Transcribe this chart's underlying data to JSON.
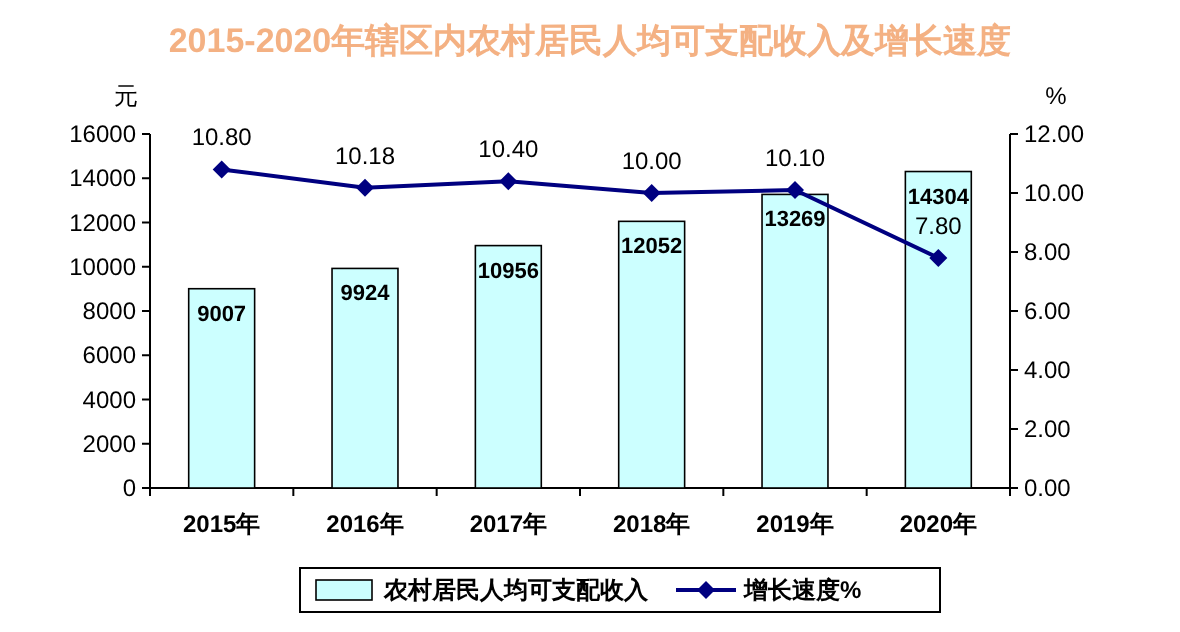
{
  "chart_data": {
    "type": "bar",
    "title": "2015-2020年辖区内农村居民人均可支配收入及增长速度",
    "ylabel": "元",
    "y2label": "%",
    "categories": [
      "2015年",
      "2016年",
      "2017年",
      "2018年",
      "2019年",
      "2020年"
    ],
    "series": [
      {
        "name": "农村居民人均可支配收入",
        "color": "#ccffff",
        "values": [
          9007,
          9924,
          10956,
          12052,
          13269,
          14304
        ],
        "value_labels": [
          "9007",
          "9924",
          "10956",
          "12052",
          "13269",
          "14304"
        ]
      },
      {
        "name": "增长速度%",
        "type": "line",
        "axis": "y2",
        "color": "#000080",
        "marker": "diamond",
        "values": [
          10.8,
          10.18,
          10.4,
          10.0,
          10.1,
          7.8
        ],
        "value_labels": [
          "10.80",
          "10.18",
          "10.40",
          "10.00",
          "10.10",
          "7.80"
        ]
      }
    ],
    "ylim": [
      0,
      16000
    ],
    "yticks": [
      0,
      2000,
      4000,
      6000,
      8000,
      10000,
      12000,
      14000,
      16000
    ],
    "y2lim": [
      0,
      12
    ],
    "y2ticks": [
      {
        "value": 0,
        "label": "0.00"
      },
      {
        "value": 2,
        "label": "2.00"
      },
      {
        "value": 4,
        "label": "4.00"
      },
      {
        "value": 6,
        "label": "6.00"
      },
      {
        "value": 8,
        "label": "8.00"
      },
      {
        "value": 10,
        "label": "10.00"
      },
      {
        "value": 12,
        "label": "12.00"
      }
    ],
    "legend": "bottom",
    "grid": false
  }
}
